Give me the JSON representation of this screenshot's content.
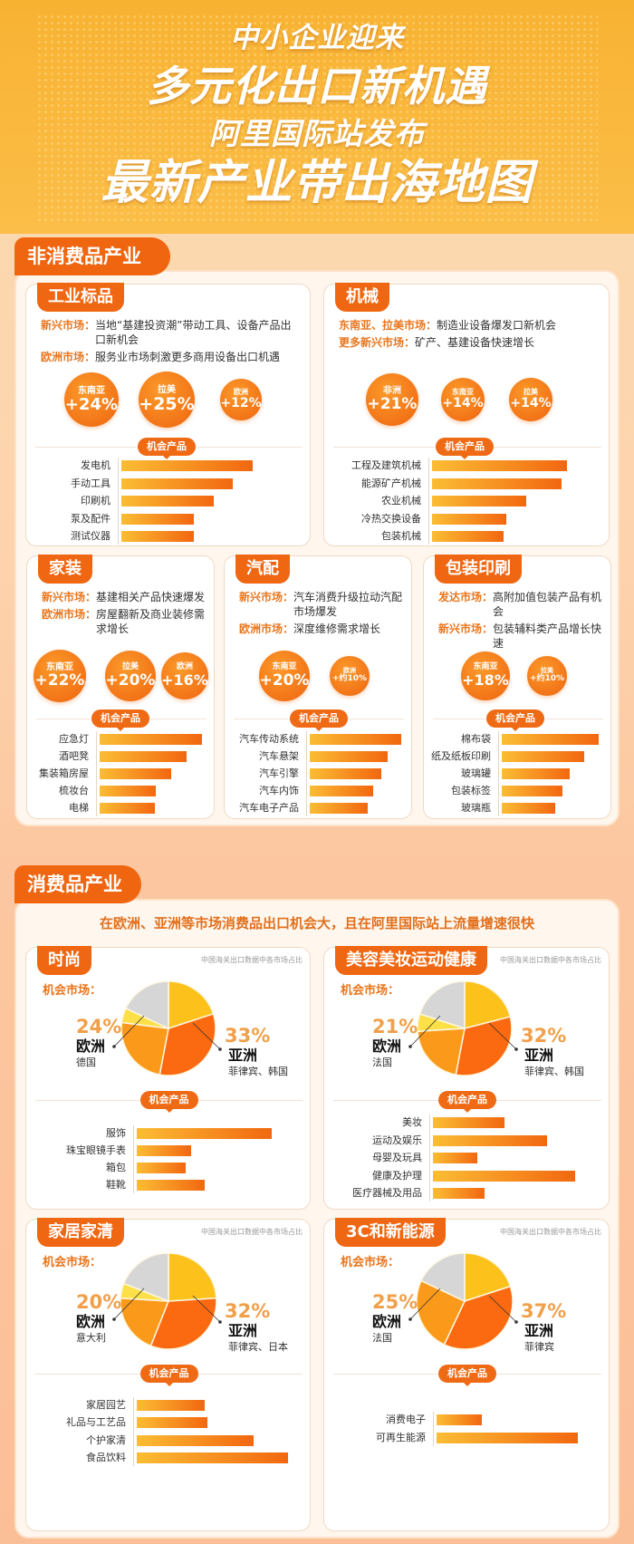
{
  "header": {
    "lines": [
      "中小企业迎来",
      "多元化出口新机遇",
      "阿里国际站发布",
      "最新产业带出海地图"
    ]
  },
  "colors": {
    "brand_orange": "#ef6712",
    "label_orange": "#e8761e",
    "bar_start": "#fbbd34",
    "bar_end": "#f26710",
    "pie_top_yellow": "#fcc21b",
    "pie_asia": "#fb6a10",
    "pie_europe": "#fb9a1a",
    "pie_small_yellow": "#fde047",
    "pie_other_gray": "#d6d6d6"
  },
  "non_consumer": {
    "title": "非消费品产业",
    "cards": [
      {
        "title": "工业标品",
        "markets": [
          {
            "label": "新兴市场：",
            "text": "当地“基建投资潮”带动工具、设备产品出口新机会"
          },
          {
            "label": "欧洲市场：",
            "text": "服务业市场刺激更多商用设备出口机遇"
          }
        ],
        "growth": [
          {
            "region": "东南亚",
            "value": "+24%"
          },
          {
            "region": "拉美",
            "value": "+25%"
          },
          {
            "region": "欧洲",
            "value": "+12%"
          }
        ],
        "products_label": "机会产品",
        "products": [
          "发电机",
          "手动工具",
          "印刷机",
          "泵及配件",
          "测试仪器"
        ]
      },
      {
        "title": "机械",
        "markets": [
          {
            "label": "东南亚、拉美市场：",
            "text": "制造业设备爆发口新机会"
          },
          {
            "label": "更多新兴市场：",
            "text": "矿产、基建设备快速增长"
          }
        ],
        "growth": [
          {
            "region": "非洲",
            "value": "+21%"
          },
          {
            "region": "东南亚",
            "value": "+14%"
          },
          {
            "region": "拉美",
            "value": "+14%"
          }
        ],
        "products_label": "机会产品",
        "products": [
          "工程及建筑机械",
          "能源矿产机械",
          "农业机械",
          "冷热交换设备",
          "包装机械"
        ]
      },
      {
        "title": "家装",
        "markets": [
          {
            "label": "新兴市场：",
            "text": "基建相关产品快速爆发"
          },
          {
            "label": "欧洲市场：",
            "text": "房屋翻新及商业装修需求增长"
          }
        ],
        "growth": [
          {
            "region": "东南亚",
            "value": "+22%"
          },
          {
            "region": "拉美",
            "value": "+20%"
          },
          {
            "region": "欧洲",
            "value": "+16%"
          }
        ],
        "products_label": "机会产品",
        "products": [
          "应急灯",
          "酒吧凳",
          "集装箱房屋",
          "梳妆台",
          "电梯"
        ]
      },
      {
        "title": "汽配",
        "markets": [
          {
            "label": "新兴市场：",
            "text": "汽车消费升级拉动汽配市场爆发"
          },
          {
            "label": "欧洲市场：",
            "text": "深度维修需求增长"
          }
        ],
        "growth": [
          {
            "region": "东南亚",
            "value": "+20%"
          },
          {
            "region": "欧洲",
            "value": "+约10%"
          }
        ],
        "products_label": "机会产品",
        "products": [
          "汽车传动系统",
          "汽车悬架",
          "汽车引擎",
          "汽车内饰",
          "汽车电子产品"
        ]
      },
      {
        "title": "包装印刷",
        "markets": [
          {
            "label": "发达市场：",
            "text": "高附加值包装产品有机会"
          },
          {
            "label": "新兴市场：",
            "text": "包装辅料类产品增长快速"
          }
        ],
        "growth": [
          {
            "region": "东南亚",
            "value": "+18%"
          },
          {
            "region": "拉美",
            "value": "+约10%"
          }
        ],
        "products_label": "机会产品",
        "products": [
          "棉布袋",
          "纸及纸板印刷",
          "玻璃罐",
          "包装标签",
          "玻璃瓶"
        ]
      }
    ]
  },
  "consumer": {
    "title": "消费品产业",
    "subtitle": "在欧洲、亚洲等市场消费品出口机会大，且在阿里国际站上流量增速很快",
    "cards": [
      {
        "title": "时尚",
        "source_note": "中国海关出口数据中各市场占比",
        "markets_label": "机会市场：",
        "europe": {
          "pct": "24%",
          "region": "欧洲",
          "countries": "德国"
        },
        "asia": {
          "pct": "33%",
          "region": "亚洲",
          "countries": "菲律宾、韩国"
        },
        "products_label": "机会产品",
        "products": [
          "服饰",
          "珠宝眼镜手表",
          "箱包",
          "鞋靴"
        ]
      },
      {
        "title": "美容美妆运动健康",
        "source_note": "中国海关出口数据中各市场占比",
        "markets_label": "机会市场：",
        "europe": {
          "pct": "21%",
          "region": "欧洲",
          "countries": "法国"
        },
        "asia": {
          "pct": "32%",
          "region": "亚洲",
          "countries": "菲律宾、韩国"
        },
        "products_label": "机会产品",
        "products": [
          "美妆",
          "运动及娱乐",
          "母婴及玩具",
          "健康及护理",
          "医疗器械及用品"
        ]
      },
      {
        "title": "家居家清",
        "source_note": "中国海关出口数据中各市场占比",
        "markets_label": "机会市场：",
        "europe": {
          "pct": "20%",
          "region": "欧洲",
          "countries": "意大利"
        },
        "asia": {
          "pct": "32%",
          "region": "亚洲",
          "countries": "菲律宾、日本"
        },
        "products_label": "机会产品",
        "products": [
          "家居园艺",
          "礼品与工艺品",
          "个护家清",
          "食品饮料"
        ]
      },
      {
        "title": "3C和新能源",
        "source_note": "中国海关出口数据中各市场占比",
        "markets_label": "机会市场：",
        "europe": {
          "pct": "25%",
          "region": "欧洲",
          "countries": "法国"
        },
        "asia": {
          "pct": "37%",
          "region": "亚洲",
          "countries": "菲律宾"
        },
        "products_label": "机会产品",
        "products": [
          "消费电子",
          "可再生能源"
        ]
      }
    ]
  },
  "chart_data": [
    {
      "type": "bar",
      "orientation": "horizontal",
      "title": "机会产品",
      "categories": [
        "发电机",
        "手动工具",
        "印刷机",
        "泵及配件",
        "测试仪器"
      ],
      "values": [
        100,
        85,
        70,
        55,
        55
      ]
    },
    {
      "type": "bar",
      "orientation": "horizontal",
      "title": "机会产品",
      "categories": [
        "工程及建筑机械",
        "能源矿产机械",
        "农业机械",
        "冷热交换设备",
        "包装机械"
      ],
      "values": [
        100,
        96,
        70,
        55,
        53
      ]
    },
    {
      "type": "bar",
      "orientation": "horizontal",
      "title": "机会产品",
      "categories": [
        "应急灯",
        "酒吧凳",
        "集装箱房屋",
        "梳妆台",
        "电梯"
      ],
      "values": [
        100,
        85,
        70,
        55,
        54
      ]
    },
    {
      "type": "bar",
      "orientation": "horizontal",
      "title": "机会产品",
      "categories": [
        "汽车传动系统",
        "汽车悬架",
        "汽车引擎",
        "汽车内饰",
        "汽车电子产品"
      ],
      "values": [
        100,
        85,
        78,
        69,
        63
      ]
    },
    {
      "type": "bar",
      "orientation": "horizontal",
      "title": "机会产品",
      "categories": [
        "棉布袋",
        "纸及纸板印刷",
        "玻璃罐",
        "包装标签",
        "玻璃瓶"
      ],
      "values": [
        100,
        85,
        70,
        63,
        55
      ]
    },
    {
      "type": "pie",
      "title": "中国海关出口数据中各市场占比",
      "slices": [
        {
          "label": "",
          "value": 20
        },
        {
          "label": "亚洲",
          "value": 33
        },
        {
          "label": "欧洲",
          "value": 24
        },
        {
          "label": "",
          "value": 5
        },
        {
          "label": "",
          "value": 18
        }
      ]
    },
    {
      "type": "bar",
      "orientation": "horizontal",
      "title": "机会产品",
      "categories": [
        "服饰",
        "珠宝眼镜手表",
        "箱包",
        "鞋靴"
      ],
      "values": [
        100,
        40,
        36,
        50
      ]
    },
    {
      "type": "pie",
      "title": "中国海关出口数据中各市场占比",
      "slices": [
        {
          "label": "",
          "value": 21
        },
        {
          "label": "亚洲",
          "value": 32
        },
        {
          "label": "欧洲",
          "value": 21
        },
        {
          "label": "",
          "value": 6
        },
        {
          "label": "",
          "value": 20
        }
      ]
    },
    {
      "type": "bar",
      "orientation": "horizontal",
      "title": "机会产品",
      "categories": [
        "美妆",
        "运动及娱乐",
        "母婴及玩具",
        "健康及护理",
        "医疗器械及用品"
      ],
      "values": [
        50,
        80,
        31,
        100,
        36
      ]
    },
    {
      "type": "pie",
      "title": "中国海关出口数据中各市场占比",
      "slices": [
        {
          "label": "",
          "value": 24
        },
        {
          "label": "亚洲",
          "value": 32
        },
        {
          "label": "欧洲",
          "value": 20
        },
        {
          "label": "",
          "value": 5
        },
        {
          "label": "",
          "value": 19
        }
      ]
    },
    {
      "type": "bar",
      "orientation": "horizontal",
      "title": "机会产品",
      "categories": [
        "家居园艺",
        "礼品与工艺品",
        "个护家清",
        "食品饮料"
      ],
      "values": [
        45,
        47,
        77,
        100
      ]
    },
    {
      "type": "pie",
      "title": "中国海关出口数据中各市场占比",
      "slices": [
        {
          "label": "",
          "value": 20
        },
        {
          "label": "亚洲",
          "value": 37
        },
        {
          "label": "欧洲",
          "value": 25
        },
        {
          "label": "",
          "value": 18
        }
      ]
    },
    {
      "type": "bar",
      "orientation": "horizontal",
      "title": "机会产品",
      "categories": [
        "消费电子",
        "可再生能源"
      ],
      "values": [
        32,
        100
      ]
    }
  ]
}
